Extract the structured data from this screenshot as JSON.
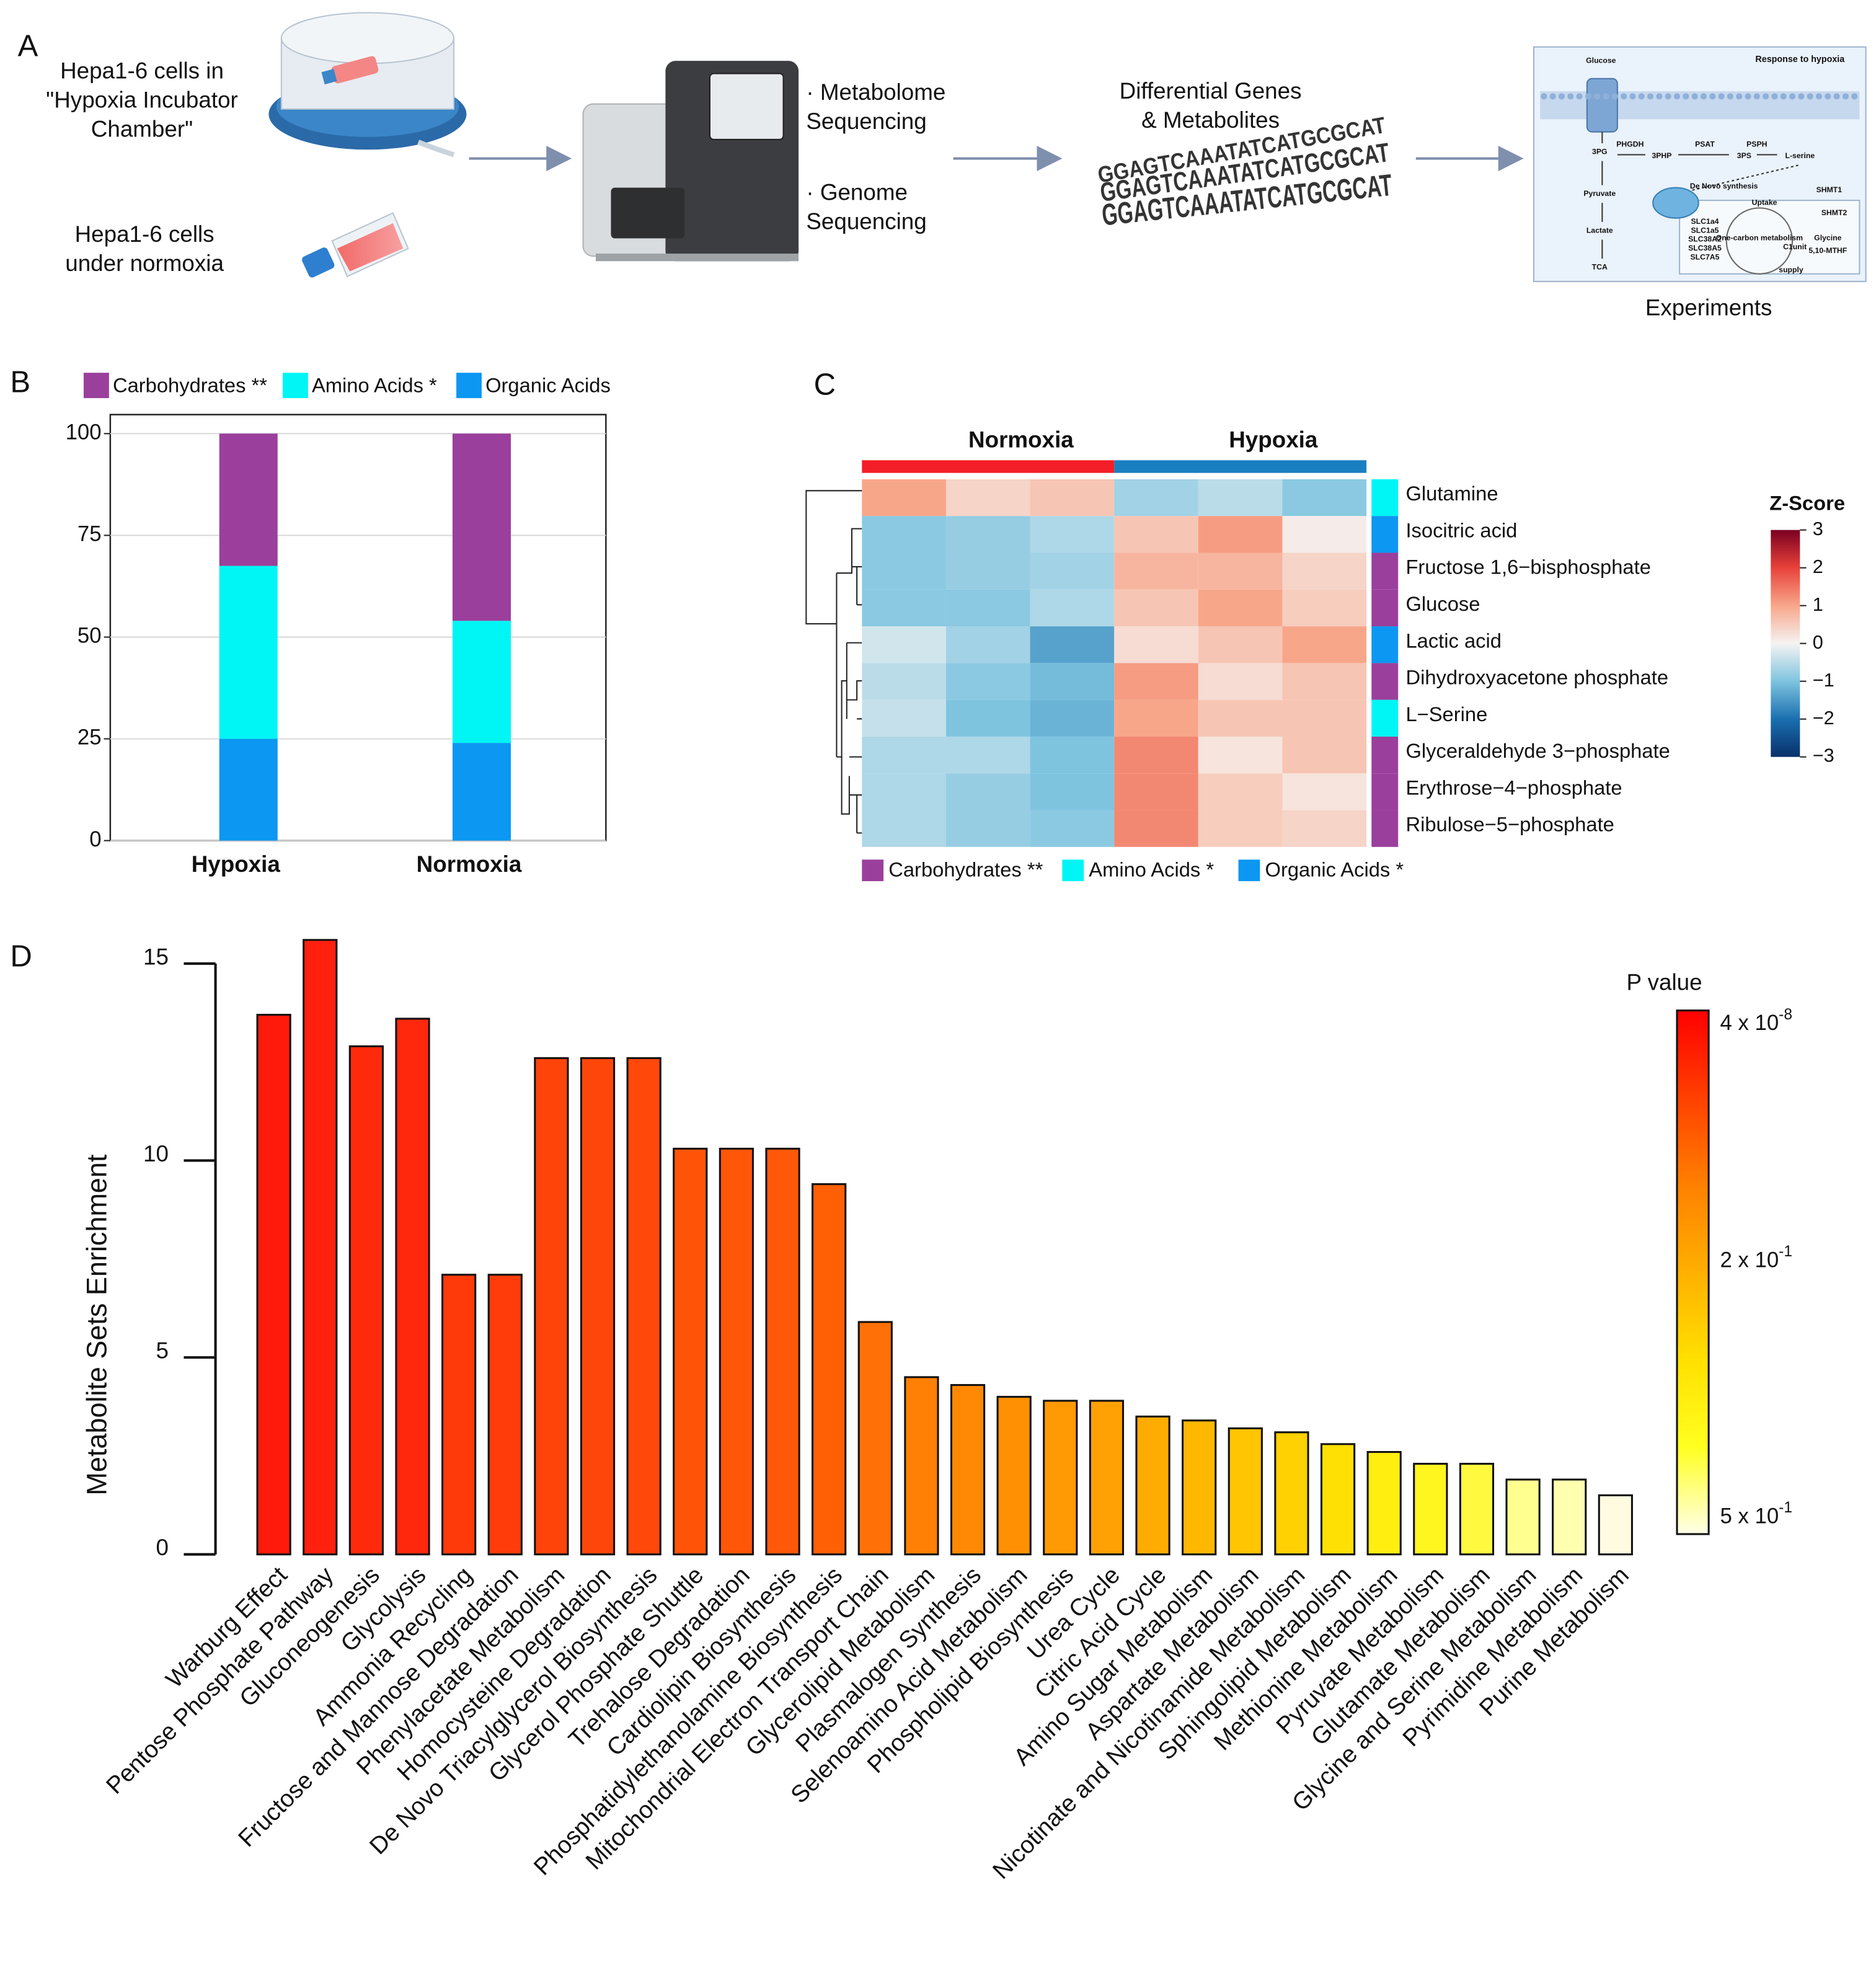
{
  "panel_labels": [
    "A",
    "B",
    "C",
    "D"
  ],
  "workflow": {
    "chamber": [
      "Hepa1-6 cells in",
      "\"Hypoxia Incubator",
      "Chamber\""
    ],
    "normoxia": [
      "Hepa1-6 cells",
      "under normoxia"
    ],
    "metabolome": [
      "· Metabolome",
      "Sequencing"
    ],
    "genome": [
      "· Genome",
      "Sequencing"
    ],
    "differential": [
      "Differential Genes",
      "& Metabolites"
    ],
    "dna": "GGAGTCAAATATCATGCGCAT",
    "experiments": "Experiments",
    "pathway": {
      "labels": [
        "Glucose",
        "Response to hypoxia",
        "3PG",
        "PHGDH",
        "3PHP",
        "PSAT",
        "3PS",
        "PSPH",
        "L-serine",
        "Pyruvate",
        "Lactate",
        "TCA",
        "De Novo synthesis",
        "Uptake",
        "SHMT1",
        "SHMT2",
        "SLC1a4",
        "SLC1a5",
        "SLC38A2",
        "SLC38A5",
        "SLC7A5",
        "One-carbon metabolism",
        "C1unit",
        "Glycine",
        "5,10-MTHF",
        "supply"
      ],
      "highlight": [
        8,
        15
      ],
      "highlight_color": "#e8261e"
    }
  },
  "chart_data": [
    {
      "type": "stacked_bar",
      "categories": [
        "Hypoxia",
        "Normoxia"
      ],
      "series": [
        {
          "name": "Organic Acids",
          "color": "#0b97f2",
          "values": [
            25,
            24
          ]
        },
        {
          "name": "Amino Acids *",
          "color": "#00f5f5",
          "values": [
            42.5,
            30
          ]
        },
        {
          "name": "Carbohydrates **",
          "color": "#9b3f9c",
          "values": [
            32.5,
            46
          ]
        }
      ],
      "ylim": [
        0,
        100
      ],
      "yticks": [
        0,
        25,
        50,
        75,
        100
      ],
      "grid": true
    },
    {
      "type": "heatmap",
      "groups": [
        {
          "name": "Normoxia",
          "color": "#f41e28"
        },
        {
          "name": "Hypoxia",
          "color": "#1a7fc1"
        }
      ],
      "rows": [
        "Glutamine",
        "Isocitric acid",
        "Fructose 1,6−bisphosphate",
        "Glucose",
        "Lactic acid",
        "Dihydroxyacetone phosphate",
        "L−Serine",
        "Glyceraldehyde 3−phosphate",
        "Erythrose−4−phosphate",
        "Ribulose−5−phosphate"
      ],
      "row_colors": [
        "#00f5f5",
        "#0b97f2",
        "#9b3f9c",
        "#9b3f9c",
        "#0b97f2",
        "#9b3f9c",
        "#00f5f5",
        "#9b3f9c",
        "#9b3f9c",
        "#9b3f9c"
      ],
      "values": [
        [
          1.0,
          0.4,
          0.6,
          -0.7,
          -0.5,
          -0.9
        ],
        [
          -0.9,
          -0.8,
          -0.6,
          0.6,
          1.1,
          0.1
        ],
        [
          -0.9,
          -0.8,
          -0.7,
          0.8,
          0.8,
          0.4
        ],
        [
          -0.9,
          -0.9,
          -0.6,
          0.6,
          1.0,
          0.5
        ],
        [
          -0.3,
          -0.7,
          -1.4,
          0.3,
          0.6,
          1.0
        ],
        [
          -0.5,
          -0.9,
          -1.1,
          1.1,
          0.3,
          0.6
        ],
        [
          -0.4,
          -1.0,
          -1.2,
          1.0,
          0.6,
          0.6
        ],
        [
          -0.6,
          -0.6,
          -1.0,
          1.3,
          0.2,
          0.6
        ],
        [
          -0.6,
          -0.8,
          -1.0,
          1.3,
          0.5,
          0.2
        ],
        [
          -0.6,
          -0.8,
          -0.9,
          1.3,
          0.5,
          0.4
        ]
      ],
      "highlight_row": 6,
      "highlight_color": "#ff1a1a",
      "colorscale": [
        "#08306b",
        "#1a6fb0",
        "#7ec4df",
        "#f5f3f2",
        "#f8a68a",
        "#e8413a",
        "#7a0020"
      ],
      "zlim": [
        -3,
        3
      ],
      "zticks": [
        {
          "value": -3,
          "label": "−3"
        },
        {
          "value": -2,
          "label": "−2"
        },
        {
          "value": -1,
          "label": "−1"
        },
        0,
        1,
        2,
        3
      ],
      "colorbar_title": "Z-Score",
      "legend": [
        {
          "name": "Carbohydrates **",
          "color": "#9b3f9c"
        },
        {
          "name": "Amino Acids *",
          "color": "#00f5f5"
        },
        {
          "name": "Organic Acids *",
          "color": "#0b97f2"
        }
      ]
    },
    {
      "type": "bar",
      "ylabel": "Metabolite Sets Enrichment",
      "categories": [
        "Warburg Effect",
        "Pentose Phosphate Pathway",
        "Gluconeogenesis",
        "Glycolysis",
        "Ammonia Recycling",
        "Fructose and Mannose Degradation",
        "Phenylacetate Metabolism",
        "Homocysteine Degradation",
        "De Novo Triacylglycerol Biosynthesis",
        "Glycerol Phosphate Shuttle",
        "Trehalose Degradation",
        "Cardiolipin Biosynthesis",
        "Phosphatidylethanolamine Biosynthesis",
        "Mitochondrial Electron Transport Chain",
        "Glycerolipid Metabolism",
        "Plasmalogen Synthesis",
        "Selenoamino Acid Metabolism",
        "Phospholipid Biosynthesis",
        "Urea Cycle",
        "Citric Acid Cycle",
        "Amino Sugar Metabolism",
        "Aspartate Metabolism",
        "Nicotinate and Nicotinamide Metabolism",
        "Sphingolipid Metabolism",
        "Methionine Metabolism",
        "Pyruvate Metabolism",
        "Glutamate Metabolism",
        "Glycine and Serine Metabolism",
        "Pyrimidine Metabolism",
        "Purine Metabolism"
      ],
      "values": [
        13.7,
        15.6,
        12.9,
        13.6,
        7.1,
        7.1,
        12.6,
        12.6,
        12.6,
        10.3,
        10.3,
        10.3,
        9.4,
        5.9,
        4.5,
        4.3,
        4.0,
        3.9,
        3.9,
        3.5,
        3.4,
        3.2,
        3.1,
        2.8,
        2.6,
        2.3,
        2.3,
        1.9,
        1.9,
        1.5
      ],
      "colors": [
        "#ff1a0c",
        "#ff200e",
        "#ff2a0c",
        "#ff280c",
        "#ff3a0a",
        "#ff3c0a",
        "#ff440a",
        "#ff460a",
        "#ff480a",
        "#ff5408",
        "#ff5608",
        "#ff5808",
        "#ff6006",
        "#ff7006",
        "#ff8004",
        "#ff8804",
        "#ff9004",
        "#ff9a04",
        "#ffa004",
        "#ffac02",
        "#ffb802",
        "#ffc402",
        "#ffd002",
        "#ffe004",
        "#ffee10",
        "#fff620",
        "#fffa40",
        "#ffff90",
        "#ffffb0",
        "#fffbe0"
      ],
      "ylim": [
        0,
        15
      ],
      "yticks": [
        0,
        5,
        10,
        15
      ],
      "highlight_index": 4,
      "highlight_color": "#ff1a1a",
      "colorbar": {
        "title": "P value",
        "colors": [
          "#ff0000",
          "#ff4000",
          "#ff8000",
          "#ffb000",
          "#ffe000",
          "#ffff20",
          "#ffffe8"
        ],
        "labels": [
          {
            "base": "4 x 10",
            "exp": "-8"
          },
          {
            "base": "2 x 10",
            "exp": "-1"
          },
          {
            "base": "5 x 10",
            "exp": "-1"
          }
        ]
      }
    }
  ]
}
